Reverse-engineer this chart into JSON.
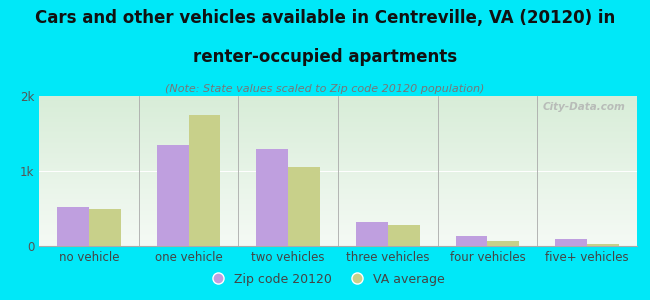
{
  "categories": [
    "no vehicle",
    "one vehicle",
    "two vehicles",
    "three vehicles",
    "four vehicles",
    "five+ vehicles"
  ],
  "zip_values": [
    520,
    1350,
    1300,
    320,
    130,
    100
  ],
  "va_values": [
    490,
    1750,
    1050,
    285,
    70,
    28
  ],
  "zip_color": "#bf9fdf",
  "va_color": "#c8d08a",
  "background_outer": "#00e8f8",
  "background_grad_top": "#d8edd8",
  "background_grad_bottom": "#f5faf5",
  "title_line1": "Cars and other vehicles available in Centreville, VA (20120) in",
  "title_line2": "renter-occupied apartments",
  "subtitle": "(Note: State values scaled to Zip code 20120 population)",
  "legend_zip": "Zip code 20120",
  "legend_va": "VA average",
  "watermark": "City-Data.com",
  "ylim": [
    0,
    2000
  ],
  "yticks": [
    0,
    1000,
    2000
  ],
  "ytick_labels": [
    "0",
    "1k",
    "2k"
  ],
  "bar_width": 0.32,
  "title_fontsize": 12,
  "subtitle_fontsize": 8,
  "axis_fontsize": 8.5,
  "legend_fontsize": 9
}
